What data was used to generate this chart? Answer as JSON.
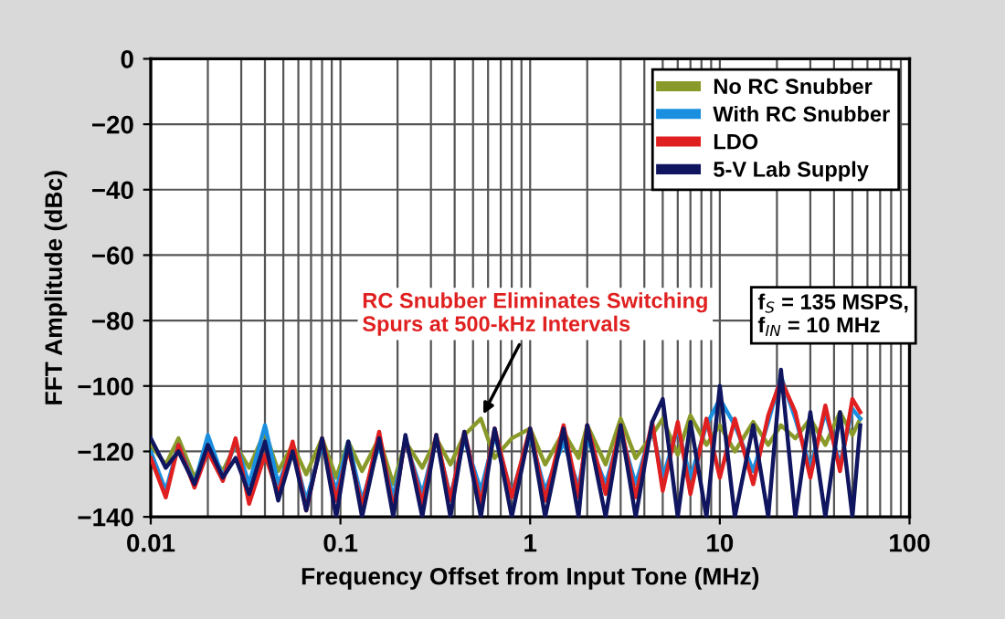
{
  "chart_data": {
    "type": "line",
    "xlabel": "Frequency Offset from Input Tone (MHz)",
    "ylabel": "FFT Amplitude (dBc)",
    "log": "x",
    "xlim": [
      0.01,
      100
    ],
    "xticks": [
      0.01,
      0.1,
      1,
      10,
      100
    ],
    "ylim": [
      -140,
      0
    ],
    "yticks": [
      -140,
      -120,
      -100,
      -80,
      -60,
      -40,
      -20,
      0
    ],
    "grid": true,
    "legend": "top right",
    "x": [
      0.01,
      0.012,
      0.014,
      0.017,
      0.02,
      0.024,
      0.028,
      0.033,
      0.04,
      0.047,
      0.056,
      0.066,
      0.08,
      0.095,
      0.11,
      0.13,
      0.16,
      0.19,
      0.22,
      0.27,
      0.32,
      0.38,
      0.45,
      0.55,
      0.65,
      0.8,
      1.0,
      1.2,
      1.5,
      1.8,
      2.0,
      2.5,
      3.0,
      3.6,
      4.4,
      5.0,
      6.0,
      7.0,
      8.5,
      10,
      12,
      15,
      18,
      21,
      25,
      30,
      36,
      43,
      50,
      55
    ],
    "series": [
      {
        "name": "No RC Snubber",
        "color": "#8a9a2a",
        "values": [
          -118,
          -124,
          -116,
          -128,
          -120,
          -126,
          -118,
          -125,
          -114,
          -126,
          -118,
          -127,
          -116,
          -128,
          -117,
          -126,
          -116,
          -130,
          -117,
          -125,
          -116,
          -124,
          -115,
          -110,
          -122,
          -116,
          -113,
          -124,
          -114,
          -122,
          -112,
          -124,
          -110,
          -122,
          -115,
          -110,
          -121,
          -109,
          -118,
          -112,
          -120,
          -111,
          -118,
          -112,
          -116,
          -110,
          -118,
          -108,
          -115,
          -110
        ]
      },
      {
        "name": "With RC Snubber",
        "color": "#1a8fe0",
        "values": [
          -120,
          -132,
          -118,
          -130,
          -115,
          -128,
          -117,
          -130,
          -112,
          -130,
          -119,
          -135,
          -118,
          -132,
          -117,
          -135,
          -118,
          -134,
          -117,
          -133,
          -116,
          -134,
          -116,
          -132,
          -115,
          -133,
          -115,
          -132,
          -117,
          -131,
          -116,
          -130,
          -114,
          -130,
          -113,
          -128,
          -113,
          -128,
          -112,
          -104,
          -112,
          -126,
          -111,
          -97,
          -110,
          -125,
          -108,
          -124,
          -107,
          -110
        ]
      },
      {
        "name": "LDO",
        "color": "#e02020",
        "values": [
          -122,
          -134,
          -118,
          -131,
          -120,
          -129,
          -116,
          -136,
          -121,
          -133,
          -117,
          -138,
          -116,
          -135,
          -119,
          -137,
          -114,
          -138,
          -116,
          -136,
          -115,
          -135,
          -114,
          -136,
          -113,
          -134,
          -113,
          -135,
          -112,
          -134,
          -112,
          -133,
          -112,
          -134,
          -111,
          -132,
          -111,
          -133,
          -110,
          -128,
          -110,
          -130,
          -109,
          -98,
          -108,
          -128,
          -106,
          -126,
          -104,
          -108
        ]
      },
      {
        "name": "5-V Lab Supply",
        "color": "#101560",
        "values": [
          -116,
          -125,
          -120,
          -130,
          -118,
          -128,
          -122,
          -133,
          -117,
          -135,
          -120,
          -138,
          -116,
          -140,
          -117,
          -140,
          -116,
          -140,
          -115,
          -140,
          -115,
          -140,
          -114,
          -140,
          -113,
          -140,
          -113,
          -140,
          -113,
          -140,
          -112,
          -140,
          -112,
          -140,
          -111,
          -104,
          -140,
          -111,
          -140,
          -100,
          -140,
          -112,
          -140,
          -95,
          -140,
          -108,
          -140,
          -108,
          -140,
          -112
        ]
      }
    ],
    "annotations": [
      {
        "text": "RC Snubber Eliminates Switching\nSpurs at 500-kHz Intervals",
        "x": 0.55,
        "y": -110
      },
      "f$_{S}$ = 135 MSPS,\nf$_{IN}$ = 10 MHz"
    ]
  }
}
